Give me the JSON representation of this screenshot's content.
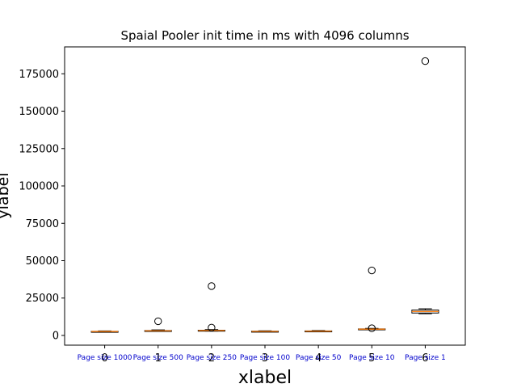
{
  "chart_data": {
    "type": "box",
    "title": "Spaial Pooler init time in ms with 4096 columns",
    "xlabel": "xlabel",
    "ylabel": "ylabel",
    "ylim": [
      -6500,
      193000
    ],
    "yticks": [
      0,
      25000,
      50000,
      75000,
      100000,
      125000,
      150000,
      175000
    ],
    "x_ticks": [
      "0",
      "1",
      "2",
      "3",
      "4",
      "5",
      "6"
    ],
    "categories": [
      "Page size 1000",
      "Page size 500",
      "Page size 250",
      "Page size 100",
      "Page size 50",
      "Page size 10",
      "Page size 1"
    ],
    "boxes": [
      {
        "whislo": 2400,
        "q1": 2550,
        "med": 2650,
        "q3": 2750,
        "whishi": 3000,
        "fliers": []
      },
      {
        "whislo": 2700,
        "q1": 2900,
        "med": 3100,
        "q3": 3300,
        "whishi": 3700,
        "fliers": [
          9500
        ]
      },
      {
        "whislo": 2900,
        "q1": 3100,
        "med": 3300,
        "q3": 3500,
        "whishi": 3900,
        "fliers": [
          5200,
          33000
        ]
      },
      {
        "whislo": 2400,
        "q1": 2600,
        "med": 2700,
        "q3": 2850,
        "whishi": 3100,
        "fliers": []
      },
      {
        "whislo": 2600,
        "q1": 2800,
        "med": 2900,
        "q3": 3050,
        "whishi": 3300,
        "fliers": []
      },
      {
        "whislo": 3800,
        "q1": 4000,
        "med": 4200,
        "q3": 4400,
        "whishi": 4700,
        "fliers": [
          4800,
          43500
        ]
      },
      {
        "whislo": 14500,
        "q1": 15000,
        "med": 16000,
        "q3": 17000,
        "whishi": 17800,
        "fliers": [
          183500
        ]
      }
    ]
  }
}
